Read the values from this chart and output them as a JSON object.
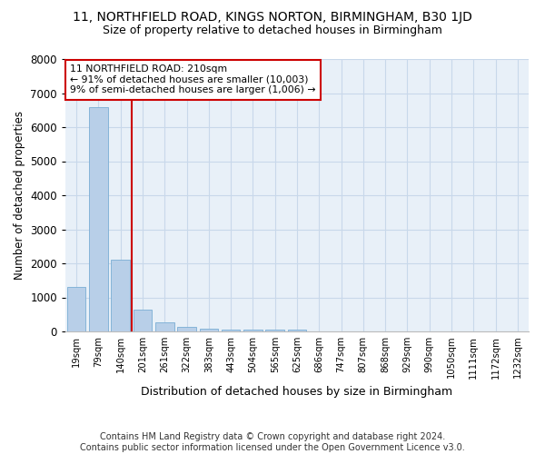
{
  "title": "11, NORTHFIELD ROAD, KINGS NORTON, BIRMINGHAM, B30 1JD",
  "subtitle": "Size of property relative to detached houses in Birmingham",
  "xlabel": "Distribution of detached houses by size in Birmingham",
  "ylabel": "Number of detached properties",
  "categories": [
    "19sqm",
    "79sqm",
    "140sqm",
    "201sqm",
    "261sqm",
    "322sqm",
    "383sqm",
    "443sqm",
    "504sqm",
    "565sqm",
    "625sqm",
    "686sqm",
    "747sqm",
    "807sqm",
    "868sqm",
    "929sqm",
    "990sqm",
    "1050sqm",
    "1111sqm",
    "1172sqm",
    "1232sqm"
  ],
  "values": [
    1300,
    6600,
    2100,
    650,
    280,
    130,
    80,
    50,
    50,
    50,
    50,
    0,
    0,
    0,
    0,
    0,
    0,
    0,
    0,
    0,
    0
  ],
  "bar_color": "#b8cfe8",
  "bar_edge_color": "#7aadd4",
  "vline_color": "#cc0000",
  "annotation_text": "11 NORTHFIELD ROAD: 210sqm\n← 91% of detached houses are smaller (10,003)\n9% of semi-detached houses are larger (1,006) →",
  "annotation_box_color": "#ffffff",
  "annotation_box_edge": "#cc0000",
  "ylim": [
    0,
    8000
  ],
  "yticks": [
    0,
    1000,
    2000,
    3000,
    4000,
    5000,
    6000,
    7000,
    8000
  ],
  "grid_color": "#c8d8ea",
  "bg_color": "#e8f0f8",
  "footer": "Contains HM Land Registry data © Crown copyright and database right 2024.\nContains public sector information licensed under the Open Government Licence v3.0.",
  "title_fontsize": 10,
  "subtitle_fontsize": 9,
  "footer_fontsize": 7
}
